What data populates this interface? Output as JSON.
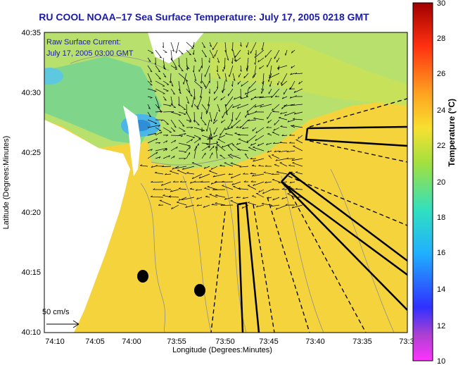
{
  "title": "RU COOL  NOAA–17  Sea Surface Temperature:  July 17, 2005 0218 GMT",
  "overlay": {
    "line1": "Raw Surface Current:",
    "line2": "July 17, 2005 03:00 GMT",
    "scale_label": "50 cm/s"
  },
  "axes": {
    "xlabel": "Longitude (Degrees:Minutes)",
    "ylabel": "Latitude (Degrees:Minutes)",
    "x_ticks": [
      "74:10",
      "74:05",
      "74:00",
      "73:55",
      "73:50",
      "73:45",
      "73:40",
      "73:35",
      "73:3"
    ],
    "y_ticks": [
      "40:35",
      "40:30",
      "40:25",
      "40:20",
      "40:15",
      "40:10"
    ]
  },
  "colorbar": {
    "label": "Temperature (°C)",
    "ticks": [
      "30",
      "28",
      "26",
      "24",
      "22",
      "20",
      "18",
      "16",
      "14",
      "12",
      "10"
    ],
    "min": 10,
    "max": 30
  },
  "colors": {
    "ocean": "#f4d33c",
    "land": "#ffffff",
    "coastal_green": "#b5e06a",
    "cold_cyan": "#49b7e8",
    "title_blue": "#1a1aa8"
  }
}
